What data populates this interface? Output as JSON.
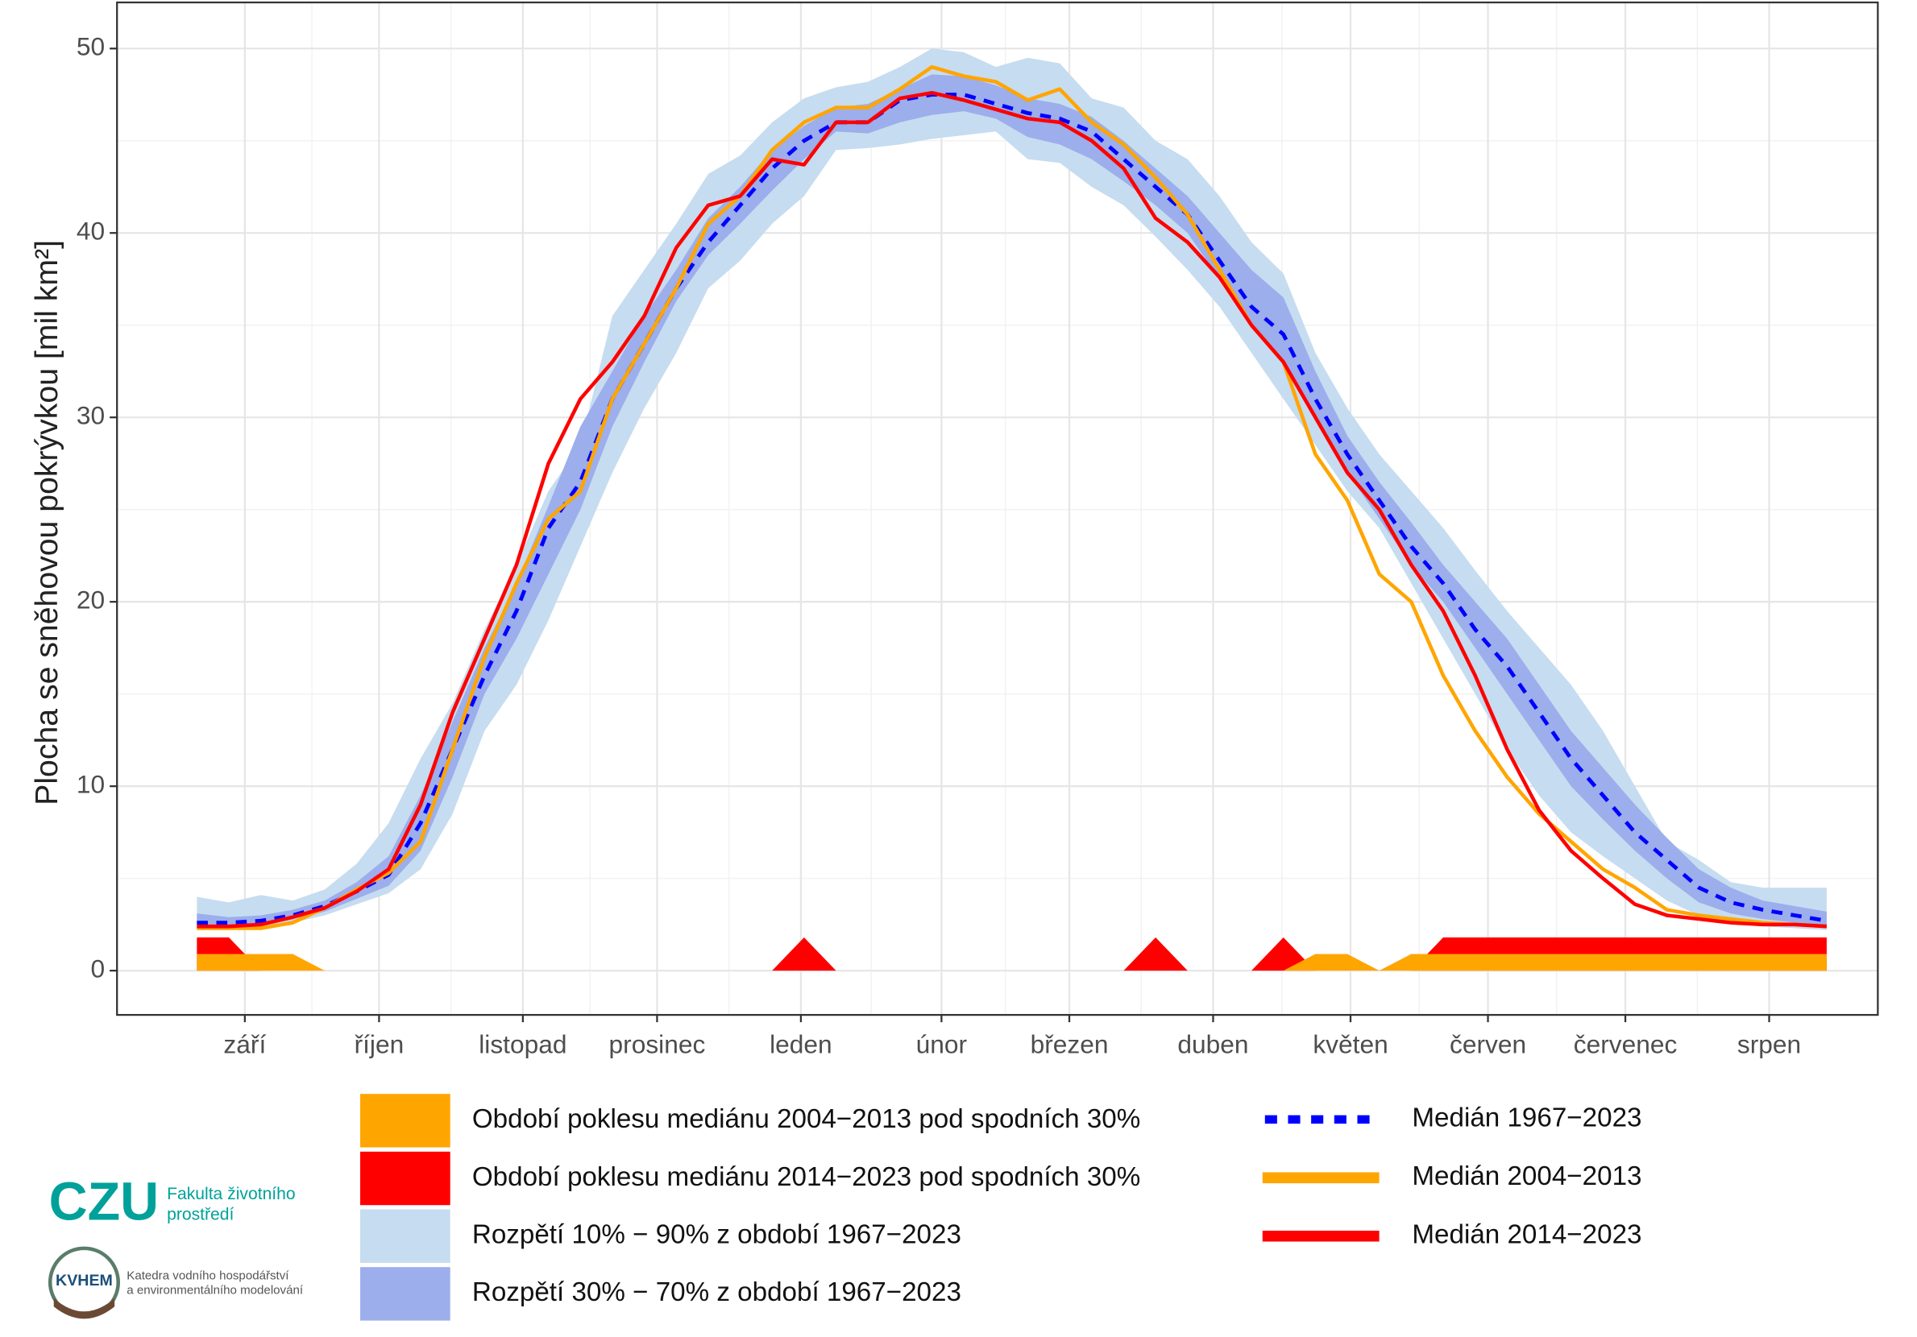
{
  "chart_data": {
    "type": "line",
    "y_label": "Plocha se sněhovou pokrývkou [mil km²]",
    "x": [
      1,
      2,
      3,
      4,
      5,
      6,
      7,
      8,
      9,
      10,
      11,
      12,
      13,
      14,
      15,
      16,
      17,
      18,
      19,
      20,
      21,
      22,
      23,
      24,
      25,
      26,
      27,
      28,
      29,
      30,
      31,
      32,
      33,
      34,
      35,
      36,
      37,
      38,
      39,
      40,
      41,
      42,
      43,
      44,
      45,
      46,
      47,
      48,
      49,
      50,
      51,
      52
    ],
    "xlim": [
      -1.5,
      53.6
    ],
    "xticks": [
      {
        "value": 2.5,
        "label": "září"
      },
      {
        "value": 6.7,
        "label": "říjen"
      },
      {
        "value": 11.2,
        "label": "listopad"
      },
      {
        "value": 15.4,
        "label": "prosinec"
      },
      {
        "value": 19.9,
        "label": "leden"
      },
      {
        "value": 24.3,
        "label": "únor"
      },
      {
        "value": 28.3,
        "label": "březen"
      },
      {
        "value": 32.8,
        "label": "duben"
      },
      {
        "value": 37.1,
        "label": "květen"
      },
      {
        "value": 41.4,
        "label": "červen"
      },
      {
        "value": 45.7,
        "label": "červenec"
      },
      {
        "value": 50.2,
        "label": "srpen"
      }
    ],
    "ylim": [
      -2.4,
      52.5
    ],
    "yticks": [
      0,
      10,
      20,
      30,
      40,
      50
    ],
    "grid": true,
    "series": [
      {
        "name": "Období poklesu mediánu 2004−2013 pod spodních 30%",
        "color": "#ffa500",
        "kind": "area",
        "values": [
          0.9,
          0.9,
          0.9,
          0.9,
          0,
          0,
          0,
          0,
          0,
          0,
          0,
          0,
          0,
          0,
          0,
          0,
          0,
          0,
          0,
          0,
          0,
          0,
          0,
          0,
          0,
          0,
          0,
          0,
          0,
          0,
          0,
          0,
          0,
          0,
          0,
          0.9,
          0.9,
          0,
          0.9,
          0.9,
          0.9,
          0.9,
          0.9,
          0.9,
          0.9,
          0.9,
          0.9,
          0.9,
          0.9,
          0.9,
          0.9,
          0.9
        ]
      },
      {
        "name": "Období poklesu mediánu 2014−2023 pod spodních 30%",
        "color": "#ff0000",
        "kind": "area",
        "values": [
          1.8,
          1.8,
          0,
          0,
          0,
          0,
          0,
          0,
          0,
          0,
          0,
          0,
          0,
          0,
          0,
          0,
          0,
          0,
          0,
          1.8,
          0,
          0,
          0,
          0,
          0,
          0,
          0,
          0,
          0,
          0,
          1.8,
          0,
          0,
          0,
          1.8,
          0,
          0,
          0,
          0,
          1.8,
          1.8,
          1.8,
          1.8,
          1.8,
          1.8,
          1.8,
          1.8,
          1.8,
          1.8,
          1.8,
          1.8,
          1.8
        ]
      },
      {
        "name": "Rozpětí 10% − 90% z období 1967−2023",
        "color": "#c6dcf0",
        "kind": "band",
        "lower": [
          2.2,
          2.2,
          2.3,
          2.6,
          3.0,
          3.6,
          4.2,
          5.5,
          8.5,
          13,
          15.5,
          19,
          23,
          27,
          30.5,
          33.5,
          37,
          38.5,
          40.5,
          42,
          44.5,
          44.6,
          44.8,
          45.1,
          45.3,
          45.5,
          44,
          43.8,
          42.5,
          41.5,
          39.8,
          38,
          36,
          33.5,
          31,
          28.5,
          26,
          24,
          21,
          18,
          15,
          12,
          9.5,
          7.5,
          6.2,
          5,
          3.8,
          3,
          2.6,
          2.4,
          2.3,
          2.2
        ],
        "upper": [
          4.0,
          3.7,
          4.1,
          3.8,
          4.4,
          5.8,
          8,
          11.5,
          14.5,
          18.5,
          22,
          26,
          28.5,
          35.5,
          38,
          40.5,
          43.2,
          44.2,
          46,
          47.3,
          47.9,
          48.2,
          49,
          50,
          49.8,
          49,
          49.5,
          49.2,
          47.3,
          46.8,
          45,
          44,
          42,
          39.5,
          37.8,
          33.5,
          30.5,
          28,
          26,
          24,
          21.7,
          19.5,
          17.5,
          15.5,
          13,
          10,
          7,
          6,
          4.8,
          4.5,
          4.5,
          4.5
        ]
      },
      {
        "name": "Rozpětí 30% − 70% z období 1967−2023",
        "color": "#9caeeb",
        "kind": "band",
        "lower": [
          2.4,
          2.4,
          2.5,
          2.8,
          3.2,
          3.9,
          4.6,
          6.5,
          10.5,
          15,
          18,
          21.5,
          25,
          29.5,
          33,
          36.3,
          38.8,
          40.5,
          42.3,
          44,
          45.5,
          45.4,
          46,
          46.4,
          46.6,
          46.2,
          45.2,
          44.8,
          44,
          42.8,
          41.5,
          40,
          37.5,
          35,
          33,
          30,
          27,
          24.5,
          22,
          20,
          17.5,
          15,
          12.5,
          10,
          8.2,
          6.5,
          5,
          3.7,
          3.1,
          2.8,
          2.6,
          2.4
        ],
        "upper": [
          3.1,
          2.9,
          3.0,
          3.3,
          3.8,
          4.8,
          6.2,
          9.5,
          13.5,
          17.5,
          21,
          25.2,
          29.5,
          32.5,
          35.5,
          38,
          40.8,
          42.5,
          44.5,
          45.8,
          46.8,
          47,
          47.8,
          48.6,
          48.5,
          48,
          47.3,
          47,
          46.3,
          45,
          43.5,
          42,
          40,
          38,
          36.5,
          32.5,
          29,
          26.5,
          24.3,
          22,
          20,
          18,
          15.5,
          13,
          11,
          9,
          7.2,
          5.5,
          4.5,
          3.8,
          3.5,
          3.2
        ]
      },
      {
        "name": "Medián 1967−2023",
        "color": "#0000ff",
        "kind": "line",
        "dashed": true,
        "values": [
          2.6,
          2.6,
          2.7,
          3.0,
          3.5,
          4.3,
          5.2,
          8,
          12,
          16,
          19.5,
          24,
          26.5,
          31,
          34,
          37,
          39.5,
          41.5,
          43.5,
          45,
          46,
          46,
          47.2,
          47.5,
          47.5,
          47,
          46.5,
          46.2,
          45.5,
          44,
          42.5,
          41,
          38.5,
          36,
          34.5,
          31,
          28,
          25.5,
          23,
          21,
          18.5,
          16.5,
          14,
          11.5,
          9.5,
          7.5,
          6,
          4.5,
          3.7,
          3.3,
          3.0,
          2.7
        ]
      },
      {
        "name": "Medián 2004−2013",
        "color": "#ffa500",
        "kind": "line",
        "dashed": false,
        "values": [
          2.3,
          2.3,
          2.3,
          2.6,
          3.4,
          4.4,
          5.3,
          7,
          12,
          17,
          21,
          24.5,
          26,
          31,
          34,
          37,
          40.5,
          42,
          44.5,
          46,
          46.8,
          46.8,
          47.8,
          49,
          48.5,
          48.2,
          47.2,
          47.8,
          46,
          44.8,
          43,
          41,
          38,
          35,
          33,
          28,
          25.5,
          21.5,
          20,
          16,
          13,
          10.5,
          8.5,
          7,
          5.5,
          4.5,
          3.3,
          3.0,
          2.8,
          2.6,
          2.5,
          2.4
        ]
      },
      {
        "name": "Medián 2014−2023",
        "color": "#ff0000",
        "kind": "line",
        "dashed": false,
        "values": [
          2.4,
          2.4,
          2.5,
          2.9,
          3.4,
          4.3,
          5.5,
          9,
          14,
          18,
          22,
          27.5,
          31,
          33,
          35.5,
          39.2,
          41.5,
          42,
          44,
          43.7,
          46,
          46,
          47.3,
          47.6,
          47.2,
          46.7,
          46.2,
          46,
          45,
          43.5,
          40.8,
          39.5,
          37.6,
          35,
          33,
          30,
          27,
          25,
          22,
          19.5,
          16,
          12,
          8.7,
          6.5,
          5,
          3.6,
          3.0,
          2.8,
          2.6,
          2.5,
          2.5,
          2.4
        ]
      }
    ]
  },
  "logos": {
    "czu": "CZU",
    "faculty": [
      "Fakulta životního",
      "prostředí"
    ],
    "kvhem": "KVHEM",
    "department": [
      "Katedra vodního hospodářství",
      "a environmentálního modelování"
    ]
  }
}
